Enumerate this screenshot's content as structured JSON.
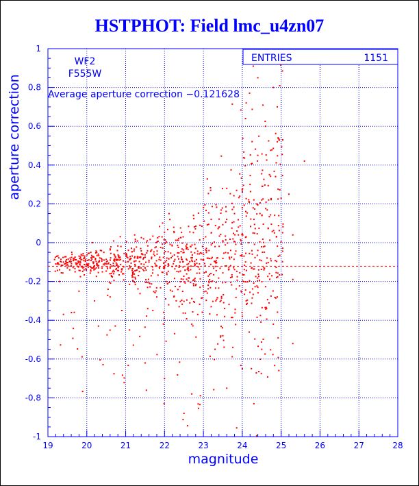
{
  "chart_data": {
    "type": "scatter",
    "title": "HSTPHOT: Field lmc_u4zn07",
    "xlabel": "magnitude",
    "ylabel": "aperture correction",
    "xlim": [
      19,
      28
    ],
    "ylim": [
      -1,
      1
    ],
    "x_ticks": [
      "19",
      "20",
      "21",
      "22",
      "23",
      "24",
      "25",
      "26",
      "27",
      "28"
    ],
    "y_ticks": [
      "1",
      "0.8",
      "0.6",
      "0.4",
      "0.2",
      "0",
      "-0.2",
      "-0.4",
      "-0.6",
      "-0.8",
      "-1"
    ],
    "grid": true,
    "annotations": {
      "camera": "WF2",
      "filter": "F555W",
      "average_text": "Average aperture correction −0.121628",
      "average_value": -0.121628
    },
    "stats_box": {
      "label": "ENTRIES",
      "value": "1151"
    },
    "marker_color": "#ff0000",
    "axis_color": "#0000ff",
    "grid_color": "#0000ff",
    "average_line_color": "#ff0000",
    "series": [
      {
        "total_entries": 1151,
        "sampled_points": [
          [
            19.2,
            -0.11
          ],
          [
            19.3,
            -0.14
          ],
          [
            19.4,
            -0.1
          ],
          [
            19.5,
            -0.13
          ],
          [
            19.6,
            -0.12
          ],
          [
            19.7,
            -0.15
          ],
          [
            19.8,
            -0.1
          ],
          [
            19.9,
            -0.13
          ],
          [
            20.0,
            -0.11
          ],
          [
            20.1,
            -0.14
          ],
          [
            20.2,
            -0.12
          ],
          [
            20.3,
            -0.1
          ],
          [
            20.4,
            -0.15
          ],
          [
            20.5,
            -0.11
          ],
          [
            20.6,
            -0.13
          ],
          [
            20.7,
            -0.09
          ],
          [
            20.8,
            -0.12
          ],
          [
            20.9,
            -0.14
          ],
          [
            21.0,
            -0.1
          ],
          [
            21.1,
            -0.12
          ],
          [
            21.2,
            -0.15
          ],
          [
            21.3,
            -0.08
          ],
          [
            21.4,
            -0.11
          ],
          [
            21.5,
            -0.13
          ],
          [
            21.6,
            -0.1
          ],
          [
            21.7,
            -0.14
          ],
          [
            21.8,
            -0.12
          ],
          [
            21.9,
            -0.09
          ],
          [
            22.0,
            -0.13
          ],
          [
            22.1,
            -0.11
          ],
          [
            22.2,
            -0.07
          ],
          [
            22.3,
            -0.12
          ],
          [
            22.4,
            -0.1
          ],
          [
            22.5,
            -0.05
          ],
          [
            22.6,
            -0.13
          ],
          [
            22.7,
            -0.09
          ],
          [
            22.8,
            -0.03
          ],
          [
            22.9,
            -0.11
          ],
          [
            23.0,
            0.02
          ],
          [
            23.1,
            -0.08
          ],
          [
            23.2,
            0.05
          ],
          [
            23.3,
            -0.02
          ],
          [
            23.4,
            0.08
          ],
          [
            23.5,
            0.01
          ],
          [
            23.6,
            0.12
          ],
          [
            23.7,
            -0.04
          ],
          [
            23.8,
            0.15
          ],
          [
            23.9,
            0.04
          ],
          [
            24.0,
            0.18
          ],
          [
            24.1,
            0.03
          ],
          [
            24.2,
            0.3
          ],
          [
            24.3,
            0.12
          ],
          [
            24.4,
            0.45
          ],
          [
            24.5,
            0.22
          ],
          [
            24.6,
            0.6
          ],
          [
            24.7,
            0.35
          ],
          [
            24.8,
            0.8
          ],
          [
            24.9,
            0.52
          ],
          [
            25.2,
            0.25
          ],
          [
            25.6,
            0.42
          ],
          [
            24.4,
            0.85
          ],
          [
            24.1,
            0.72
          ],
          [
            24.9,
            0.7
          ],
          [
            23.2,
            0.12
          ],
          [
            23.6,
            0.28
          ],
          [
            24.4,
            -0.04
          ],
          [
            24.7,
            -0.16
          ],
          [
            25.3,
            -0.19
          ],
          [
            25.3,
            0.04
          ],
          [
            21.5,
            -0.62
          ],
          [
            22.0,
            -0.7
          ],
          [
            22.5,
            -0.88
          ],
          [
            22.7,
            -0.78
          ],
          [
            23.3,
            -0.55
          ],
          [
            23.6,
            -0.75
          ],
          [
            24.0,
            -0.65
          ],
          [
            24.3,
            -0.83
          ],
          [
            21.1,
            -0.45
          ],
          [
            21.7,
            -0.35
          ],
          [
            22.2,
            -0.25
          ],
          [
            22.7,
            -0.42
          ],
          [
            23.2,
            -0.33
          ],
          [
            23.5,
            -0.48
          ],
          [
            24.0,
            -0.38
          ],
          [
            24.5,
            -0.55
          ],
          [
            24.8,
            -0.42
          ],
          [
            25.3,
            -0.52
          ],
          [
            21.2,
            -0.2
          ],
          [
            21.8,
            -0.28
          ],
          [
            22.3,
            -0.3
          ],
          [
            22.8,
            -0.22
          ],
          [
            23.1,
            -0.26
          ],
          [
            23.7,
            -0.18
          ],
          [
            24.1,
            -0.3
          ],
          [
            19.8,
            -0.25
          ],
          [
            20.2,
            -0.3
          ],
          [
            20.6,
            -0.28
          ],
          [
            20.9,
            -0.35
          ],
          [
            19.4,
            -0.37
          ],
          [
            20.3,
            -0.43
          ],
          [
            19.3,
            -0.2
          ],
          [
            24.4,
            -0.23
          ],
          [
            24.9,
            -0.28
          ],
          [
            23.9,
            0.08
          ]
        ]
      }
    ]
  }
}
